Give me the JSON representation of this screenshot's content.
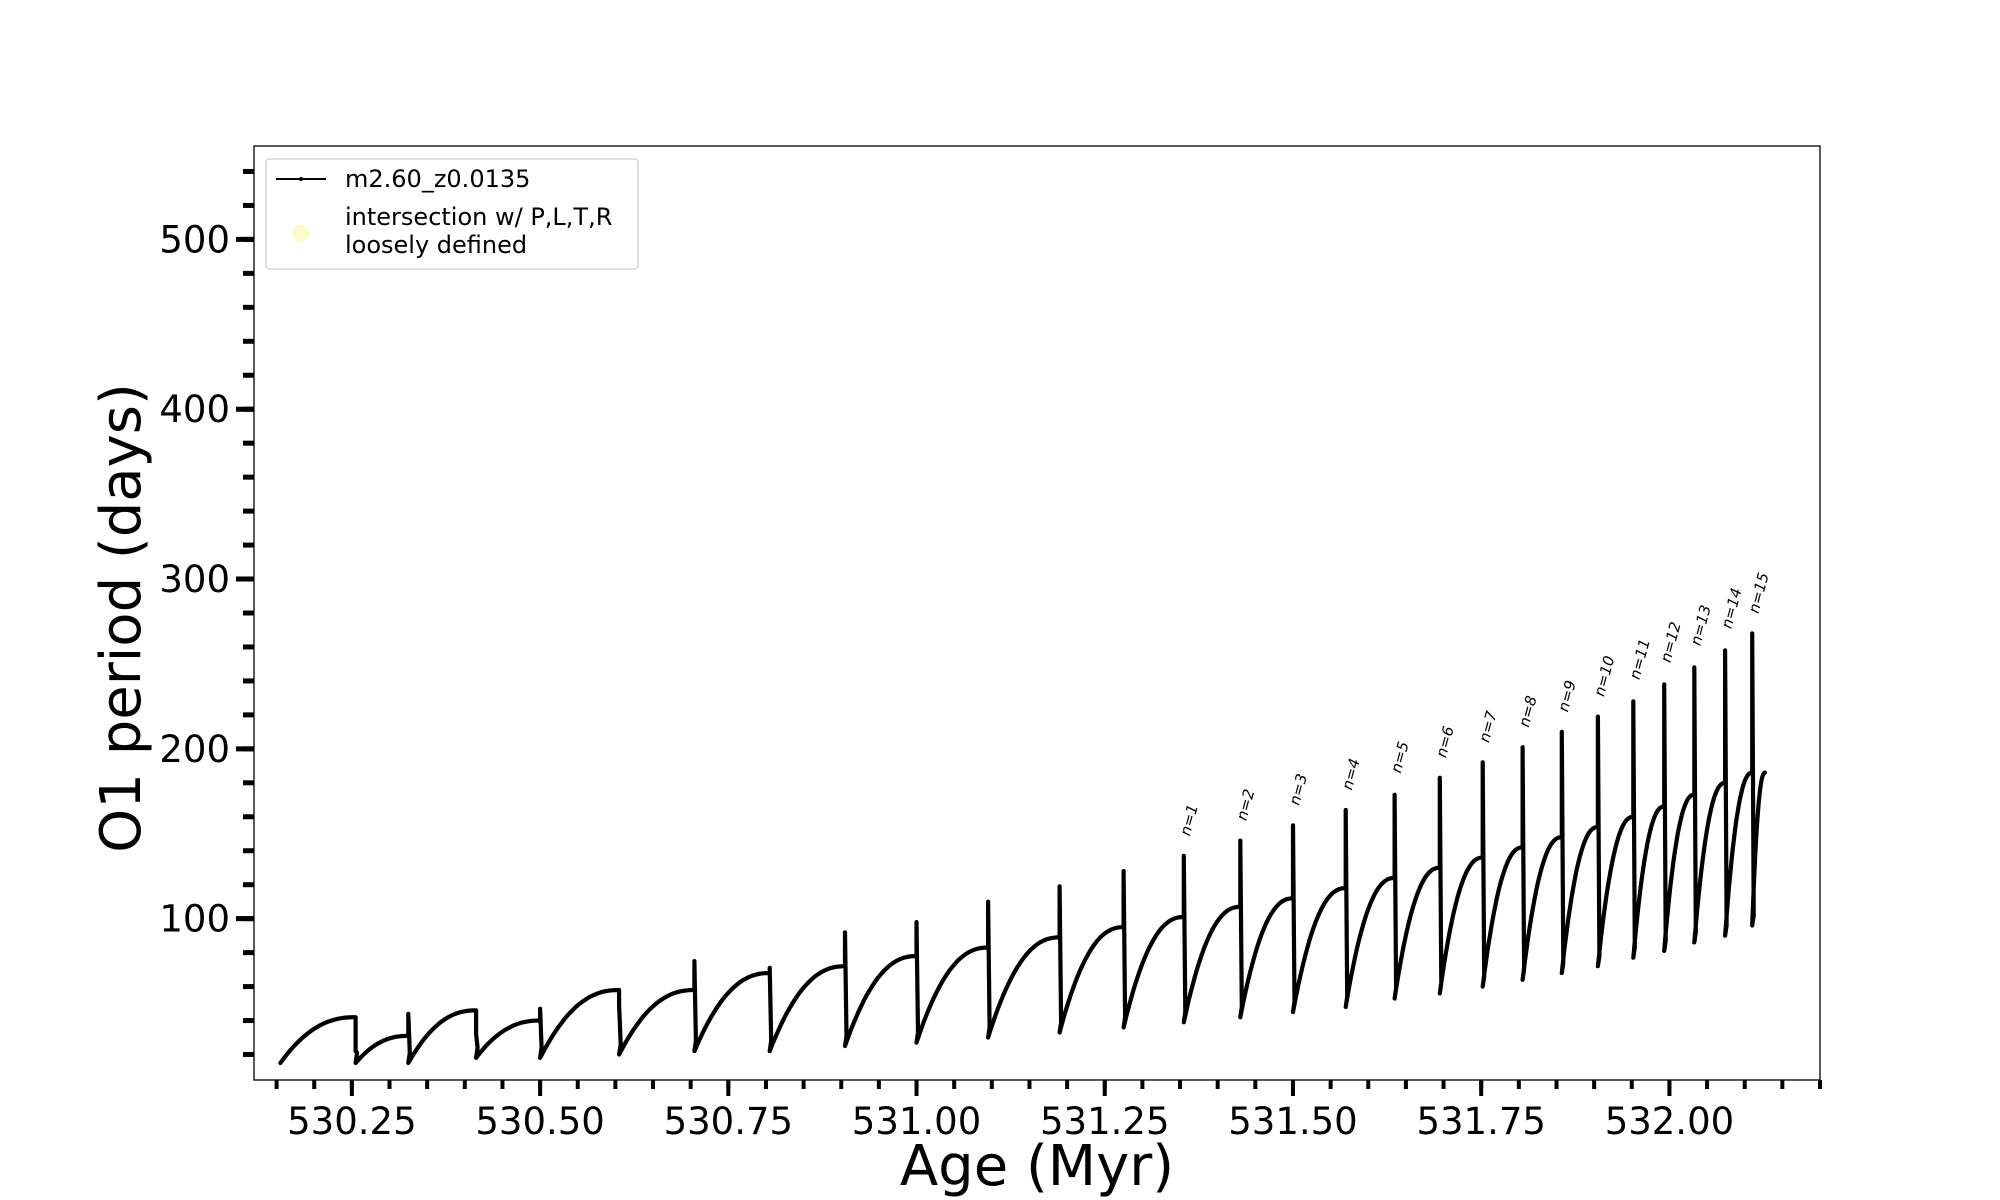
{
  "chart_data": {
    "type": "line",
    "title": "",
    "xlabel": "Age (Myr)",
    "ylabel": "O1 period (days)",
    "xlim": [
      530.12,
      532.2
    ],
    "ylim": [
      5,
      555
    ],
    "x_ticks": [
      530.25,
      530.5,
      530.75,
      531.0,
      531.25,
      531.5,
      531.75,
      532.0
    ],
    "x_tick_labels": [
      "530.25",
      "530.50",
      "530.75",
      "531.00",
      "531.25",
      "531.50",
      "531.75",
      "532.00"
    ],
    "y_ticks": [
      100,
      200,
      300,
      400,
      500
    ],
    "y_tick_labels": [
      "100",
      "200",
      "300",
      "400",
      "500"
    ],
    "grid": false,
    "legend": {
      "position": "top-left",
      "entries": [
        {
          "label": "m2.60_z0.0135",
          "marker": "line",
          "color": "#000000"
        },
        {
          "label": [
            "intersection w/ P,L,T,R",
            "loosely defined"
          ],
          "marker": "circle",
          "color": "#fffacd"
        }
      ]
    },
    "series": [
      {
        "name": "m2.60_z0.0135",
        "color": "#000000",
        "pulses": [
          {
            "x_start": 530.155,
            "x_end": 530.255,
            "y_min": 15,
            "y_end": 42,
            "y_spike": 22
          },
          {
            "x_start": 530.255,
            "x_end": 530.325,
            "y_min": 15,
            "y_end": 31,
            "y_spike": 44
          },
          {
            "x_start": 530.325,
            "x_end": 530.415,
            "y_min": 15,
            "y_end": 46,
            "y_spike": 32
          },
          {
            "x_start": 530.415,
            "x_end": 530.5,
            "y_min": 18,
            "y_end": 40,
            "y_spike": 47
          },
          {
            "x_start": 530.5,
            "x_end": 530.605,
            "y_min": 18,
            "y_end": 58,
            "y_spike": 49
          },
          {
            "x_start": 530.605,
            "x_end": 530.705,
            "y_min": 20,
            "y_end": 58,
            "y_spike": 75
          },
          {
            "x_start": 530.705,
            "x_end": 530.805,
            "y_min": 22,
            "y_end": 68,
            "y_spike": 71
          },
          {
            "x_start": 530.805,
            "x_end": 530.905,
            "y_min": 22,
            "y_end": 72,
            "y_spike": 92
          },
          {
            "x_start": 530.905,
            "x_end": 531.0,
            "y_min": 25,
            "y_end": 78,
            "y_spike": 98
          },
          {
            "x_start": 531.0,
            "x_end": 531.095,
            "y_min": 27,
            "y_end": 83,
            "y_spike": 110
          },
          {
            "x_start": 531.095,
            "x_end": 531.19,
            "y_min": 30,
            "y_end": 89,
            "y_spike": 119
          },
          {
            "x_start": 531.19,
            "x_end": 531.275,
            "y_min": 33,
            "y_end": 95,
            "y_spike": 128
          },
          {
            "x_start": 531.275,
            "x_end": 531.355,
            "y_min": 36,
            "y_end": 101,
            "y_spike": 137
          },
          {
            "x_start": 531.355,
            "x_end": 531.43,
            "y_min": 39,
            "y_end": 107,
            "y_spike": 146
          },
          {
            "x_start": 531.43,
            "x_end": 531.5,
            "y_min": 42,
            "y_end": 112,
            "y_spike": 155
          },
          {
            "x_start": 531.5,
            "x_end": 531.57,
            "y_min": 45,
            "y_end": 118,
            "y_spike": 164
          },
          {
            "x_start": 531.57,
            "x_end": 531.635,
            "y_min": 48,
            "y_end": 124,
            "y_spike": 173
          },
          {
            "x_start": 531.635,
            "x_end": 531.695,
            "y_min": 53,
            "y_end": 130,
            "y_spike": 183
          },
          {
            "x_start": 531.695,
            "x_end": 531.752,
            "y_min": 56,
            "y_end": 136,
            "y_spike": 192
          },
          {
            "x_start": 531.752,
            "x_end": 531.805,
            "y_min": 60,
            "y_end": 142,
            "y_spike": 201
          },
          {
            "x_start": 531.805,
            "x_end": 531.857,
            "y_min": 64,
            "y_end": 148,
            "y_spike": 210
          },
          {
            "x_start": 531.857,
            "x_end": 531.905,
            "y_min": 68,
            "y_end": 154,
            "y_spike": 219
          },
          {
            "x_start": 531.905,
            "x_end": 531.952,
            "y_min": 72,
            "y_end": 160,
            "y_spike": 228
          },
          {
            "x_start": 531.952,
            "x_end": 531.993,
            "y_min": 77,
            "y_end": 166,
            "y_spike": 238
          },
          {
            "x_start": 531.993,
            "x_end": 532.033,
            "y_min": 81,
            "y_end": 173,
            "y_spike": 248
          },
          {
            "x_start": 532.033,
            "x_end": 532.074,
            "y_min": 86,
            "y_end": 180,
            "y_spike": 258
          },
          {
            "x_start": 532.074,
            "x_end": 532.11,
            "y_min": 90,
            "y_end": 186,
            "y_spike": 268
          },
          {
            "x_start": 532.11,
            "x_end": 532.127,
            "y_min": 96,
            "y_end": 186,
            "y_spike": 277
          }
        ]
      }
    ],
    "annotations": [
      {
        "text": "n=1",
        "x": 531.355,
        "y": 146
      },
      {
        "text": "n=2",
        "x": 531.43,
        "y": 155
      },
      {
        "text": "n=3",
        "x": 531.5,
        "y": 164
      },
      {
        "text": "n=4",
        "x": 531.57,
        "y": 173
      },
      {
        "text": "n=5",
        "x": 531.635,
        "y": 183
      },
      {
        "text": "n=6",
        "x": 531.695,
        "y": 192
      },
      {
        "text": "n=7",
        "x": 531.752,
        "y": 201
      },
      {
        "text": "n=8",
        "x": 531.805,
        "y": 210
      },
      {
        "text": "n=9",
        "x": 531.857,
        "y": 219
      },
      {
        "text": "n=10",
        "x": 531.905,
        "y": 228
      },
      {
        "text": "n=11",
        "x": 531.952,
        "y": 238
      },
      {
        "text": "n=12",
        "x": 531.993,
        "y": 248
      },
      {
        "text": "n=13",
        "x": 532.033,
        "y": 258
      },
      {
        "text": "n=14",
        "x": 532.074,
        "y": 268
      },
      {
        "text": "n=15",
        "x": 532.11,
        "y": 277
      }
    ]
  }
}
